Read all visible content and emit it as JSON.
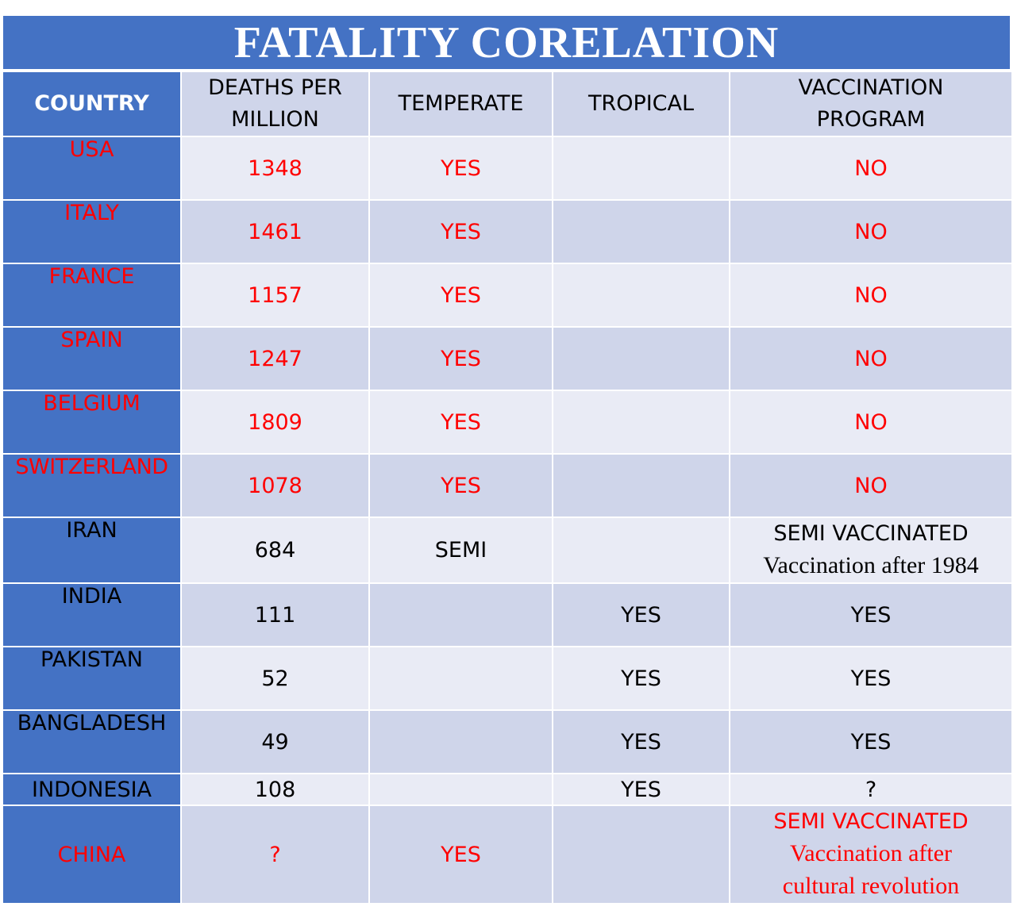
{
  "title": "FATALITY CORELATION",
  "headers": {
    "country": "COUNTRY",
    "deaths_line1": "DEATHS PER",
    "deaths_line2": "MILLION",
    "temperate": "TEMPERATE",
    "tropical": "TROPICAL",
    "vaccination_line1": "VACCINATION",
    "vaccination_line2": "PROGRAM"
  },
  "rows": [
    {
      "country": "USA",
      "deaths": "1348",
      "temperate": "YES",
      "tropical": "",
      "vaccination": "NO"
    },
    {
      "country": "ITALY",
      "deaths": "1461",
      "temperate": "YES",
      "tropical": "",
      "vaccination": "NO"
    },
    {
      "country": "FRANCE",
      "deaths": "1157",
      "temperate": "YES",
      "tropical": "",
      "vaccination": "NO"
    },
    {
      "country": "SPAIN",
      "deaths": "1247",
      "temperate": "YES",
      "tropical": "",
      "vaccination": "NO"
    },
    {
      "country": "BELGIUM",
      "deaths": "1809",
      "temperate": "YES",
      "tropical": "",
      "vaccination": "NO"
    },
    {
      "country": "SWITZERLAND",
      "deaths": "1078",
      "temperate": "YES",
      "tropical": "",
      "vaccination": "NO"
    },
    {
      "country": "IRAN",
      "deaths": "684",
      "temperate": "SEMI",
      "tropical": "",
      "vaccination": "SEMI VACCINATED",
      "vaccination_note": "Vaccination after 1984"
    },
    {
      "country": "INDIA",
      "deaths": "111",
      "temperate": "",
      "tropical": "YES",
      "vaccination": "YES"
    },
    {
      "country": "PAKISTAN",
      "deaths": "52",
      "temperate": "",
      "tropical": "YES",
      "vaccination": "YES"
    },
    {
      "country": "BANGLADESH",
      "deaths": "49",
      "temperate": "",
      "tropical": "YES",
      "vaccination": "YES"
    },
    {
      "country": "INDONESIA",
      "deaths": "108",
      "temperate": "",
      "tropical": "YES",
      "vaccination": "?"
    },
    {
      "country": "CHINA",
      "deaths": "?",
      "temperate": "YES",
      "tropical": "",
      "vaccination": "SEMI VACCINATED",
      "vaccination_note_line1": "Vaccination after",
      "vaccination_note_line2": "cultural revolution"
    }
  ],
  "colors": {
    "header_blue": "#4472c4",
    "row_light": "#e9ebf5",
    "row_dark": "#cfd5ea",
    "highlight_red": "#ff0000"
  }
}
